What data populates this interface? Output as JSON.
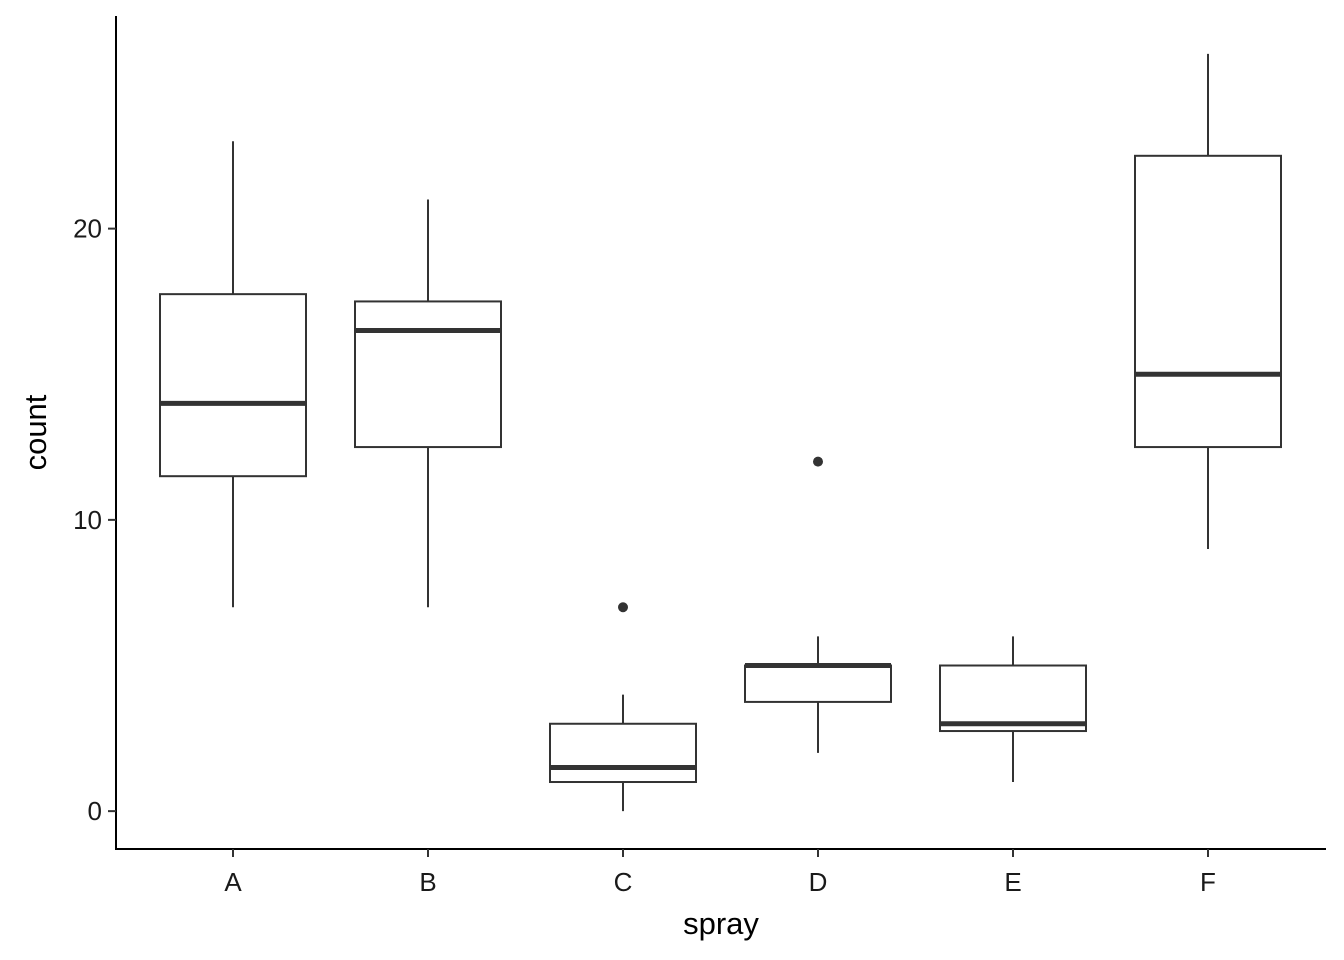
{
  "chart_data": {
    "type": "boxplot",
    "title": "",
    "xlabel": "spray",
    "ylabel": "count",
    "ylim": [
      -1.3,
      27.3
    ],
    "yticks": [
      0,
      10,
      20
    ],
    "ytick_labels": [
      "0",
      "10",
      "20"
    ],
    "categories": [
      "A",
      "B",
      "C",
      "D",
      "E",
      "F"
    ],
    "boxes": [
      {
        "label": "A",
        "whisker_low": 7,
        "q1": 11.5,
        "median": 14,
        "q3": 17.75,
        "whisker_high": 23,
        "outliers": []
      },
      {
        "label": "B",
        "whisker_low": 7,
        "q1": 12.5,
        "median": 16.5,
        "q3": 17.5,
        "whisker_high": 21,
        "outliers": []
      },
      {
        "label": "C",
        "whisker_low": 0,
        "q1": 1,
        "median": 1.5,
        "q3": 3,
        "whisker_high": 4,
        "outliers": [
          7
        ]
      },
      {
        "label": "D",
        "whisker_low": 2,
        "q1": 3.75,
        "median": 5,
        "q3": 5,
        "whisker_high": 6,
        "outliers": [
          12
        ]
      },
      {
        "label": "E",
        "whisker_low": 1,
        "q1": 2.75,
        "median": 3,
        "q3": 5,
        "whisker_high": 6,
        "outliers": []
      },
      {
        "label": "F",
        "whisker_low": 9,
        "q1": 12.5,
        "median": 15,
        "q3": 22.5,
        "whisker_high": 26,
        "outliers": []
      }
    ],
    "grid": false,
    "legend": "none",
    "colors": {
      "box_fill": "#ffffff",
      "box_stroke": "#333333",
      "axis": "#000000"
    }
  }
}
